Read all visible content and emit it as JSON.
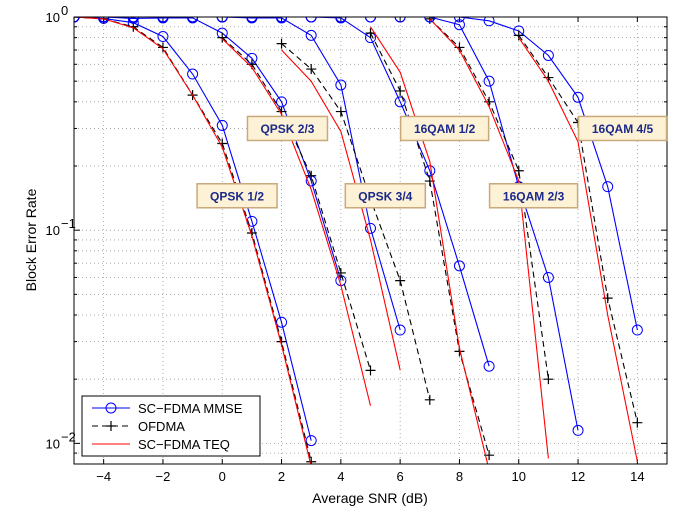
{
  "chart_data": {
    "type": "line",
    "title": "",
    "xlabel": "Average SNR (dB)",
    "ylabel": "Block Error Rate",
    "xlim": [
      -5,
      15
    ],
    "ylim": [
      0.008,
      1
    ],
    "yscale": "log",
    "grid": true,
    "x_ticks": [
      -4,
      -2,
      0,
      2,
      4,
      6,
      8,
      10,
      12,
      14
    ],
    "x_tick_labels": [
      "−4",
      "−2",
      "0",
      "2",
      "4",
      "6",
      "8",
      "10",
      "12",
      "14"
    ],
    "y_ticks": [
      0.01,
      0.1,
      1
    ],
    "y_tick_labels": [
      "10",
      "10",
      "10"
    ],
    "y_tick_exponents": [
      "−2",
      "−1",
      "0"
    ],
    "legend": {
      "position": "bottom-left",
      "entries": [
        {
          "label": "SC−FDMA MMSE",
          "color": "#0000ff",
          "dash": "solid",
          "marker": "circle"
        },
        {
          "label": "OFDMA",
          "color": "#000000",
          "dash": "dashed",
          "marker": "plus"
        },
        {
          "label": "SC−FDMA TEQ",
          "color": "#ff0000",
          "dash": "solid",
          "marker": "none"
        }
      ]
    },
    "annotations": [
      {
        "text": "QPSK 1/2",
        "x": 0.5,
        "y": 0.145
      },
      {
        "text": "QPSK 2/3",
        "x": 2.2,
        "y": 0.3
      },
      {
        "text": "QPSK 3/4",
        "x": 5.5,
        "y": 0.145
      },
      {
        "text": "16QAM 1/2",
        "x": 7.5,
        "y": 0.3
      },
      {
        "text": "16QAM 2/3",
        "x": 10.5,
        "y": 0.145
      },
      {
        "text": "16QAM 4/5",
        "x": 13.5,
        "y": 0.3
      }
    ],
    "series": [
      {
        "group": "QPSK 1/2",
        "method": "SC-FDMA MMSE",
        "x": [
          -5,
          -4,
          -3,
          -2,
          -1,
          0,
          1,
          2,
          3
        ],
        "y": [
          1.0,
          0.985,
          0.94,
          0.81,
          0.54,
          0.31,
          0.11,
          0.037,
          0.0103
        ]
      },
      {
        "group": "QPSK 1/2",
        "method": "OFDMA",
        "x": [
          -5,
          -4,
          -3,
          -2,
          -1,
          0,
          1,
          2,
          3
        ],
        "y": [
          1.0,
          0.98,
          0.9,
          0.72,
          0.43,
          0.255,
          0.097,
          0.03,
          0.0082
        ]
      },
      {
        "group": "QPSK 1/2",
        "method": "SC-FDMA TEQ",
        "x": [
          -5,
          -4,
          -3,
          -2,
          -1,
          0,
          1,
          2,
          3
        ],
        "y": [
          1.0,
          0.98,
          0.89,
          0.71,
          0.43,
          0.245,
          0.094,
          0.029,
          0.0078
        ]
      },
      {
        "group": "QPSK 2/3",
        "method": "SC-FDMA MMSE",
        "x": [
          -5,
          -4,
          -3,
          -2,
          -1,
          0,
          1,
          2,
          3,
          4
        ],
        "y": [
          1.0,
          1.0,
          0.985,
          0.99,
          0.99,
          0.84,
          0.64,
          0.4,
          0.17,
          0.058
        ]
      },
      {
        "group": "QPSK 2/3",
        "method": "OFDMA",
        "x": [
          0,
          1,
          2,
          3,
          4,
          5
        ],
        "y": [
          0.8,
          0.6,
          0.36,
          0.18,
          0.063,
          0.022
        ]
      },
      {
        "group": "QPSK 2/3",
        "method": "SC-FDMA TEQ",
        "x": [
          0,
          1,
          2,
          3,
          4,
          5
        ],
        "y": [
          0.79,
          0.58,
          0.35,
          0.155,
          0.055,
          0.015
        ]
      },
      {
        "group": "QPSK 3/4",
        "method": "SC-FDMA MMSE",
        "x": [
          -5,
          -4,
          -3,
          -2,
          -1,
          0,
          1,
          2,
          3,
          4,
          5,
          6
        ],
        "y": [
          1.0,
          1.0,
          1.0,
          1.0,
          1.0,
          1.0,
          0.99,
          0.99,
          0.82,
          0.48,
          0.102,
          0.034
        ]
      },
      {
        "group": "QPSK 3/4",
        "method": "OFDMA",
        "x": [
          2,
          3,
          4,
          5,
          6,
          7
        ],
        "y": [
          0.75,
          0.57,
          0.36,
          0.14,
          0.058,
          0.016
        ]
      },
      {
        "group": "QPSK 3/4",
        "method": "SC-FDMA TEQ",
        "x": [
          2,
          3,
          4,
          5,
          6
        ],
        "y": [
          0.7,
          0.5,
          0.29,
          0.09,
          0.022
        ]
      },
      {
        "group": "16QAM 1/2",
        "method": "SC-FDMA MMSE",
        "x": [
          -5,
          -4,
          -3,
          -2,
          -1,
          0,
          1,
          2,
          3,
          4,
          5,
          6,
          7,
          8,
          9
        ],
        "y": [
          1.0,
          1.0,
          1.0,
          1.0,
          1.0,
          1.0,
          1.0,
          1.0,
          1.0,
          0.99,
          0.8,
          0.4,
          0.19,
          0.068,
          0.023
        ]
      },
      {
        "group": "16QAM 1/2",
        "method": "OFDMA",
        "x": [
          5,
          6,
          7,
          8,
          9
        ],
        "y": [
          0.84,
          0.45,
          0.17,
          0.027,
          0.0088
        ]
      },
      {
        "group": "16QAM 1/2",
        "method": "SC-FDMA TEQ",
        "x": [
          5,
          6,
          7,
          8,
          9
        ],
        "y": [
          0.9,
          0.55,
          0.21,
          0.028,
          0.0075
        ]
      },
      {
        "group": "16QAM 2/3",
        "method": "SC-FDMA MMSE",
        "x": [
          -5,
          -4,
          -3,
          -2,
          -1,
          0,
          1,
          2,
          3,
          4,
          5,
          6,
          7,
          8,
          9,
          10,
          11,
          12
        ],
        "y": [
          1.0,
          1.0,
          1.0,
          1.0,
          1.0,
          1.0,
          1.0,
          1.0,
          1.0,
          1.0,
          1.0,
          1.0,
          1.0,
          0.92,
          0.5,
          0.16,
          0.06,
          0.0115
        ]
      },
      {
        "group": "16QAM 2/3",
        "method": "OFDMA",
        "x": [
          7,
          8,
          9,
          10,
          11
        ],
        "y": [
          0.98,
          0.72,
          0.4,
          0.19,
          0.02
        ]
      },
      {
        "group": "16QAM 2/3",
        "method": "SC-FDMA TEQ",
        "x": [
          7,
          8,
          9,
          10,
          11
        ],
        "y": [
          0.98,
          0.7,
          0.38,
          0.17,
          0.0085
        ]
      },
      {
        "group": "16QAM 4/5",
        "method": "SC-FDMA MMSE",
        "x": [
          -5,
          -4,
          -3,
          -2,
          -1,
          0,
          1,
          2,
          3,
          4,
          5,
          6,
          7,
          8,
          9,
          10,
          11,
          12,
          13,
          14
        ],
        "y": [
          1.0,
          1.0,
          1.0,
          1.0,
          1.0,
          1.0,
          1.0,
          1.0,
          1.0,
          1.0,
          1.0,
          1.0,
          1.0,
          1.0,
          0.96,
          0.86,
          0.66,
          0.42,
          0.16,
          0.034
        ]
      },
      {
        "group": "16QAM 4/5",
        "method": "OFDMA",
        "x": [
          10,
          11,
          12,
          13,
          14
        ],
        "y": [
          0.82,
          0.52,
          0.32,
          0.048,
          0.0125
        ]
      },
      {
        "group": "16QAM 4/5",
        "method": "SC-FDMA TEQ",
        "x": [
          10,
          11,
          12,
          13,
          14
        ],
        "y": [
          0.8,
          0.5,
          0.26,
          0.04,
          0.0082
        ]
      }
    ]
  }
}
